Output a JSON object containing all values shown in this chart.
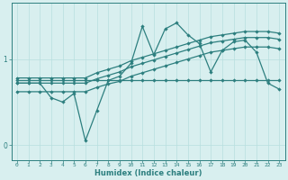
{
  "xlabel": "Humidex (Indice chaleur)",
  "x_values": [
    0,
    1,
    2,
    3,
    4,
    5,
    6,
    7,
    8,
    9,
    10,
    11,
    12,
    13,
    14,
    15,
    16,
    17,
    18,
    19,
    20,
    21,
    22,
    23
  ],
  "line1_y": [
    0.75,
    0.75,
    0.75,
    0.75,
    0.75,
    0.75,
    0.75,
    0.75,
    0.75,
    0.75,
    0.75,
    0.75,
    0.75,
    0.75,
    0.75,
    0.75,
    0.75,
    0.75,
    0.75,
    0.75,
    0.75,
    0.75,
    0.75,
    0.75
  ],
  "line2_y": [
    0.72,
    0.72,
    0.72,
    0.55,
    0.5,
    0.6,
    0.05,
    0.4,
    0.75,
    0.8,
    0.95,
    1.38,
    1.05,
    1.35,
    1.42,
    1.28,
    1.18,
    0.85,
    1.1,
    1.2,
    1.22,
    1.08,
    0.72,
    0.65
  ],
  "line3_y": [
    0.78,
    0.78,
    0.78,
    0.78,
    0.78,
    0.78,
    0.78,
    0.84,
    0.88,
    0.92,
    0.98,
    1.02,
    1.06,
    1.1,
    1.14,
    1.18,
    1.22,
    1.26,
    1.28,
    1.3,
    1.32,
    1.32,
    1.32,
    1.3
  ],
  "line4_y": [
    0.72,
    0.72,
    0.72,
    0.72,
    0.72,
    0.72,
    0.72,
    0.77,
    0.81,
    0.85,
    0.91,
    0.95,
    0.99,
    1.03,
    1.07,
    1.11,
    1.15,
    1.19,
    1.21,
    1.23,
    1.25,
    1.25,
    1.25,
    1.23
  ],
  "line5_y": [
    0.62,
    0.62,
    0.62,
    0.62,
    0.62,
    0.62,
    0.62,
    0.67,
    0.71,
    0.74,
    0.8,
    0.84,
    0.88,
    0.92,
    0.96,
    1.0,
    1.04,
    1.08,
    1.1,
    1.12,
    1.14,
    1.14,
    1.14,
    1.12
  ],
  "line_color": "#2d7f7f",
  "bg_color": "#d8efef",
  "grid_color": "#b8dede",
  "yticks": [
    0,
    1
  ],
  "ylim": [
    -0.18,
    1.65
  ],
  "xlim": [
    -0.5,
    23.5
  ]
}
